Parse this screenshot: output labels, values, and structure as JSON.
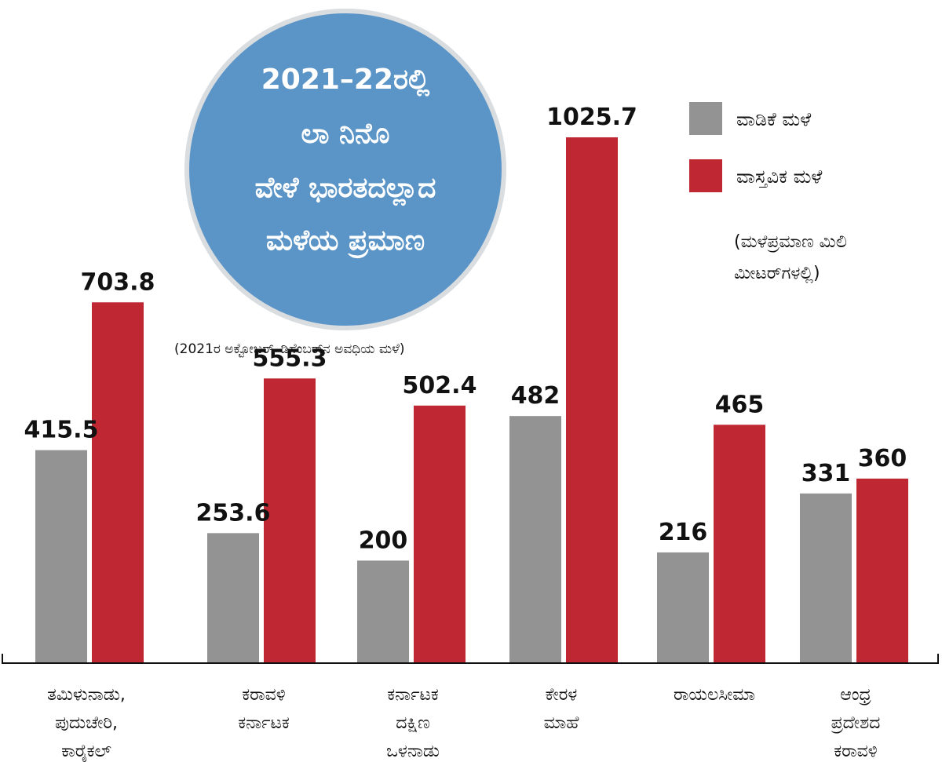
{
  "title_lines": [
    "2021–22ರಲ್ಲಿ",
    "ಲಾ ನಿನೊ",
    "ವೇಳೆ ಭಾರತದಲ್ಲಾದ",
    "ಮಳೆಯ ಪ್ರಮಾಣ"
  ],
  "period_note": "(2021ರ ಅಕ್ಟೋಬರ್–ಡಿಸೆಂಬರ್‌ನ ಅವಧಿಯ ಮಳೆ)",
  "unit_note_lines": [
    "(ಮಳೆಪ್ರಮಾಣ ಮಿಲಿ",
    "ಮೀಟರ್‌ಗಳಲ್ಲಿ)"
  ],
  "colors": {
    "normal": "#939393",
    "actual": "#bf2732",
    "badge": "#5b95c7"
  },
  "chart_data": {
    "type": "bar",
    "title": "2021–22ರಲ್ಲಿ ಲಾ ನಿನೊ ವೇಳೆ ಭಾರತದಲ್ಲಾದ ಮಳೆಯ ಪ್ರಮಾಣ",
    "ylim": [
      0,
      1100
    ],
    "grid": false,
    "legend_position": "top-right",
    "categories": [
      [
        "ತಮಿಳುನಾಡು,",
        "ಪುದುಚೇರಿ,",
        "ಕಾರೈಕಲ್"
      ],
      [
        "ಕರಾವಳಿ",
        "ಕರ್ನಾಟಕ"
      ],
      [
        "ಕರ್ನಾಟಕ",
        "ದಕ್ಷಿಣ",
        "ಒಳನಾಡು"
      ],
      [
        "ಕೇರಳ",
        "ಮಾಹೆ"
      ],
      [
        "ರಾಯಲಸೀಮಾ"
      ],
      [
        "ಆಂಧ್ರ",
        "ಪ್ರದೇಶದ",
        "ಕರಾವಳಿ"
      ]
    ],
    "series": [
      {
        "name": "ವಾಡಿಕೆ ಮಳೆ",
        "values": [
          415.5,
          253.6,
          200,
          482,
          216,
          331
        ]
      },
      {
        "name": "ವಾಸ್ತವಿಕ ಮಳೆ",
        "values": [
          703.8,
          555.3,
          502.4,
          1025.7,
          465,
          360
        ]
      }
    ],
    "value_labels": [
      [
        "415.5",
        "253.6",
        "200",
        "482",
        "216",
        "331"
      ],
      [
        "703.8",
        "555.3",
        "502.4",
        "1025.7",
        "465",
        "360"
      ]
    ]
  }
}
